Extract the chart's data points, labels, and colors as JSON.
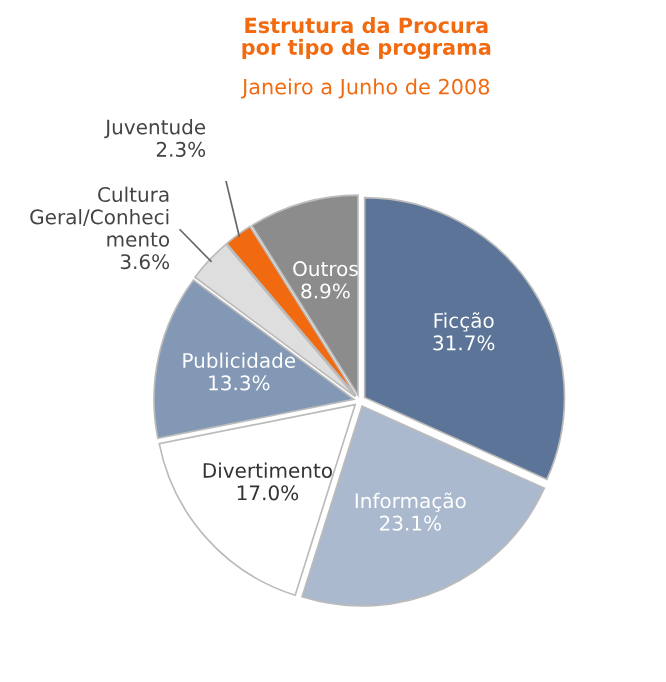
{
  "chart_data": {
    "type": "pie",
    "title": "Estrutura da Procura\npor tipo de programa",
    "subtitle": "Janeiro a Junho de 2008",
    "categories": [
      "Ficção",
      "Informação",
      "Divertimento",
      "Publicidade",
      "Cultura\nGeral/Conheci\nmento",
      "Juventude",
      "Outros"
    ],
    "values": [
      31.7,
      23.1,
      17.0,
      13.3,
      3.6,
      2.3,
      8.9
    ],
    "value_labels": [
      "31.7%",
      "23.1%",
      "17.0%",
      "13.3%",
      "3.6%",
      "2.3%",
      "8.9%"
    ],
    "colors": [
      "#5b7497",
      "#aab9cd",
      "#ffffff",
      "#8398b4",
      "#dedede",
      "#f26a10",
      "#8c8c8c"
    ],
    "legend": false
  }
}
